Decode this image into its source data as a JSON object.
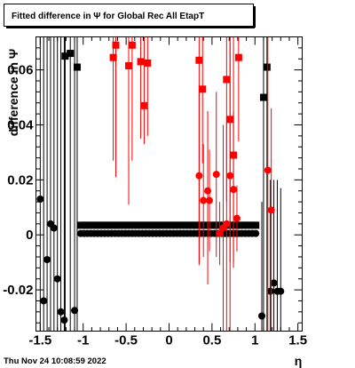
{
  "title": "Fitted difference in  Ψ  for Global Rec All EtapT",
  "timestamp": "Thu Nov 24 10:08:59 2022",
  "colors": {
    "black": "#000000",
    "red": "#ff0000",
    "frame": "#000000"
  },
  "chart_data": {
    "type": "scatter",
    "title": "Fitted difference in  Ψ  for Global Rec All EtapT",
    "xlabel": "η",
    "ylabel": "difference in  Ψ",
    "xlim": [
      -1.55,
      1.55
    ],
    "ylim": [
      -0.035,
      0.072
    ],
    "x_ticks": [
      -1.5,
      -1,
      -0.5,
      0,
      0.5,
      1,
      1.5
    ],
    "x_tick_labels": [
      "-1.5",
      "-1",
      "-0.5",
      "0",
      "0.5",
      "1",
      "1.5"
    ],
    "y_ticks": [
      -0.02,
      0,
      0.02,
      0.04,
      0.06
    ],
    "y_tick_labels": [
      "-0.02",
      "0",
      "0.02",
      "0.04",
      "0.06"
    ],
    "grid": false,
    "legend": "none",
    "series": [
      {
        "marker": "square",
        "color": "#000000",
        "points": [
          {
            "x": -1.21,
            "y": 0.065,
            "ylo": -0.035,
            "yhi": 0.072
          },
          {
            "x": -1.15,
            "y": 0.066,
            "ylo": -0.035,
            "yhi": 0.072
          },
          {
            "x": -1.07,
            "y": 0.061,
            "ylo": -0.035,
            "yhi": 0.072
          },
          {
            "x": -1.03,
            "y": 0.0035
          },
          {
            "x": -0.99,
            "y": 0.0035
          },
          {
            "x": -0.95,
            "y": 0.0035
          },
          {
            "x": -0.91,
            "y": 0.0035
          },
          {
            "x": -0.87,
            "y": 0.0035
          },
          {
            "x": -0.83,
            "y": 0.0035
          },
          {
            "x": -0.79,
            "y": 0.0035
          },
          {
            "x": -0.75,
            "y": 0.0035
          },
          {
            "x": -0.71,
            "y": 0.0035
          },
          {
            "x": -0.67,
            "y": 0.0035
          },
          {
            "x": -0.63,
            "y": 0.0035
          },
          {
            "x": -0.59,
            "y": 0.0035
          },
          {
            "x": -0.55,
            "y": 0.0035
          },
          {
            "x": -0.51,
            "y": 0.0035
          },
          {
            "x": -0.47,
            "y": 0.0035
          },
          {
            "x": -0.43,
            "y": 0.0035
          },
          {
            "x": -0.39,
            "y": 0.0035
          },
          {
            "x": -0.35,
            "y": 0.0035
          },
          {
            "x": -0.31,
            "y": 0.0035
          },
          {
            "x": -0.27,
            "y": 0.0035
          },
          {
            "x": -0.23,
            "y": 0.0035
          },
          {
            "x": -0.19,
            "y": 0.0035
          },
          {
            "x": -0.15,
            "y": 0.0035
          },
          {
            "x": -0.11,
            "y": 0.0035
          },
          {
            "x": -0.07,
            "y": 0.0035
          },
          {
            "x": -0.03,
            "y": 0.0035
          },
          {
            "x": 0.01,
            "y": 0.0035
          },
          {
            "x": 0.05,
            "y": 0.0035
          },
          {
            "x": 0.09,
            "y": 0.0035
          },
          {
            "x": 0.13,
            "y": 0.0035
          },
          {
            "x": 0.17,
            "y": 0.0035
          },
          {
            "x": 0.21,
            "y": 0.0035
          },
          {
            "x": 0.25,
            "y": 0.0035
          },
          {
            "x": 0.29,
            "y": 0.0035
          },
          {
            "x": 0.33,
            "y": 0.0035
          },
          {
            "x": 0.37,
            "y": 0.0035
          },
          {
            "x": 0.41,
            "y": 0.0035
          },
          {
            "x": 0.45,
            "y": 0.0035
          },
          {
            "x": 0.49,
            "y": 0.0035
          },
          {
            "x": 0.53,
            "y": 0.0035
          },
          {
            "x": 0.57,
            "y": 0.0035
          },
          {
            "x": 0.61,
            "y": 0.0035
          },
          {
            "x": 0.65,
            "y": 0.0035
          },
          {
            "x": 0.69,
            "y": 0.0035
          },
          {
            "x": 0.73,
            "y": 0.0035
          },
          {
            "x": 0.77,
            "y": 0.0035
          },
          {
            "x": 0.81,
            "y": 0.0035
          },
          {
            "x": 0.85,
            "y": 0.0035
          },
          {
            "x": 0.89,
            "y": 0.0035
          },
          {
            "x": 0.93,
            "y": 0.0035
          },
          {
            "x": 0.97,
            "y": 0.0035
          },
          {
            "x": 1.01,
            "y": 0.0035
          },
          {
            "x": 1.1,
            "y": 0.05,
            "ylo": -0.035,
            "yhi": 0.072
          },
          {
            "x": 1.14,
            "y": 0.061,
            "ylo": -0.035,
            "yhi": 0.072
          }
        ]
      },
      {
        "marker": "circle",
        "color": "#000000",
        "points": [
          {
            "x": -1.5,
            "y": 0.013,
            "ylo": -0.035,
            "yhi": 0.072
          },
          {
            "x": -1.46,
            "y": -0.024,
            "ylo": -0.035,
            "yhi": 0.072
          },
          {
            "x": -1.42,
            "y": -0.009,
            "ylo": -0.035,
            "yhi": 0.072
          },
          {
            "x": -1.38,
            "y": 0.004,
            "ylo": -0.035,
            "yhi": 0.072
          },
          {
            "x": -1.34,
            "y": 0.0025,
            "ylo": -0.035,
            "yhi": 0.072
          },
          {
            "x": -1.3,
            "y": -0.016,
            "ylo": -0.035,
            "yhi": 0.072
          },
          {
            "x": -1.26,
            "y": -0.028,
            "ylo": -0.035,
            "yhi": 0.072
          },
          {
            "x": -1.22,
            "y": -0.031,
            "ylo": -0.035,
            "yhi": 0.072
          },
          {
            "x": -1.1,
            "y": -0.0275,
            "ylo": -0.035,
            "yhi": 0.072
          },
          {
            "x": -1.03,
            "y": 0.0005
          },
          {
            "x": -0.99,
            "y": 0.0005
          },
          {
            "x": -0.95,
            "y": 0.0005
          },
          {
            "x": -0.91,
            "y": 0.0005
          },
          {
            "x": -0.87,
            "y": 0.0005
          },
          {
            "x": -0.83,
            "y": 0.0005
          },
          {
            "x": -0.79,
            "y": 0.0005
          },
          {
            "x": -0.75,
            "y": 0.0005
          },
          {
            "x": -0.71,
            "y": 0.0005
          },
          {
            "x": -0.67,
            "y": 0.0005
          },
          {
            "x": -0.63,
            "y": 0.0005
          },
          {
            "x": -0.59,
            "y": 0.0005
          },
          {
            "x": -0.55,
            "y": 0.0005
          },
          {
            "x": -0.51,
            "y": 0.0005
          },
          {
            "x": -0.47,
            "y": 0.0005
          },
          {
            "x": -0.43,
            "y": 0.0005
          },
          {
            "x": -0.39,
            "y": 0.0005
          },
          {
            "x": -0.35,
            "y": 0.0005
          },
          {
            "x": -0.31,
            "y": 0.0005
          },
          {
            "x": -0.27,
            "y": 0.0005
          },
          {
            "x": -0.23,
            "y": 0.0005
          },
          {
            "x": -0.19,
            "y": 0.0005
          },
          {
            "x": -0.15,
            "y": 0.0005
          },
          {
            "x": -0.11,
            "y": 0.0005
          },
          {
            "x": -0.07,
            "y": 0.0005
          },
          {
            "x": -0.03,
            "y": 0.0005
          },
          {
            "x": 0.01,
            "y": 0.0005
          },
          {
            "x": 0.05,
            "y": 0.0005
          },
          {
            "x": 0.09,
            "y": 0.0005
          },
          {
            "x": 0.13,
            "y": 0.0005
          },
          {
            "x": 0.17,
            "y": 0.0005
          },
          {
            "x": 0.21,
            "y": 0.0005
          },
          {
            "x": 0.25,
            "y": 0.0005
          },
          {
            "x": 0.29,
            "y": 0.0005
          },
          {
            "x": 0.33,
            "y": 0.0005
          },
          {
            "x": 0.37,
            "y": 0.0005
          },
          {
            "x": 0.41,
            "y": 0.0005
          },
          {
            "x": 0.45,
            "y": 0.0005
          },
          {
            "x": 0.49,
            "y": 0.0005
          },
          {
            "x": 0.53,
            "y": 0.0005
          },
          {
            "x": 0.57,
            "y": 0.0005
          },
          {
            "x": 0.61,
            "y": 0.0005
          },
          {
            "x": 0.65,
            "y": 0.0005
          },
          {
            "x": 0.69,
            "y": 0.0005
          },
          {
            "x": 0.73,
            "y": 0.0005
          },
          {
            "x": 0.77,
            "y": 0.0005
          },
          {
            "x": 0.81,
            "y": 0.0005
          },
          {
            "x": 0.85,
            "y": 0.0005
          },
          {
            "x": 0.89,
            "y": 0.0005
          },
          {
            "x": 0.93,
            "y": 0.0005
          },
          {
            "x": 0.97,
            "y": 0.0005
          },
          {
            "x": 1.01,
            "y": 0.0005
          },
          {
            "x": 1.08,
            "y": -0.0295,
            "ylo": -0.035,
            "yhi": 0.012
          },
          {
            "x": 1.18,
            "y": -0.0205,
            "ylo": -0.035,
            "yhi": 0.02
          },
          {
            "x": 1.22,
            "y": -0.0175,
            "ylo": -0.035,
            "yhi": 0.02
          },
          {
            "x": 1.26,
            "y": -0.0205,
            "ylo": -0.035,
            "yhi": 0.02
          },
          {
            "x": 1.3,
            "y": -0.0205,
            "ylo": -0.035,
            "yhi": 0.017
          }
        ]
      },
      {
        "marker": "square",
        "color": "#ff0000",
        "points": [
          {
            "x": -0.65,
            "y": 0.0645,
            "ylo": 0.027,
            "yhi": 0.072
          },
          {
            "x": -0.62,
            "y": 0.069,
            "ylo": 0.021,
            "yhi": 0.072
          },
          {
            "x": -0.47,
            "y": 0.0615,
            "ylo": 0.011,
            "yhi": 0.072
          },
          {
            "x": -0.43,
            "y": 0.069,
            "ylo": 0.027,
            "yhi": 0.072
          },
          {
            "x": -0.33,
            "y": 0.063,
            "ylo": 0.035,
            "yhi": 0.072
          },
          {
            "x": -0.29,
            "y": 0.047,
            "ylo": 0.033,
            "yhi": 0.072
          },
          {
            "x": -0.25,
            "y": 0.0625,
            "ylo": 0.036,
            "yhi": 0.072
          },
          {
            "x": 0.35,
            "y": 0.0635,
            "ylo": -0.01,
            "yhi": 0.072
          },
          {
            "x": 0.39,
            "y": 0.053,
            "ylo": 0.026,
            "yhi": 0.072
          },
          {
            "x": 0.67,
            "y": 0.0565,
            "ylo": 0.012,
            "yhi": 0.072
          },
          {
            "x": 0.71,
            "y": 0.042,
            "ylo": -0.01,
            "yhi": 0.072
          },
          {
            "x": 0.75,
            "y": 0.029,
            "ylo": -0.01,
            "yhi": 0.072
          },
          {
            "x": 0.81,
            "y": 0.0645,
            "ylo": 0.034,
            "yhi": 0.072
          }
        ]
      },
      {
        "marker": "circle",
        "color": "#ff0000",
        "points": [
          {
            "x": 0.35,
            "y": 0.0215,
            "ylo": -0.011,
            "yhi": 0.054
          },
          {
            "x": 0.4,
            "y": 0.0125,
            "ylo": -0.008,
            "yhi": 0.033
          },
          {
            "x": 0.45,
            "y": 0.016,
            "ylo": -0.018,
            "yhi": 0.045
          },
          {
            "x": 0.47,
            "y": 0.0125,
            "ylo": -0.006,
            "yhi": 0.031
          },
          {
            "x": 0.55,
            "y": 0.022,
            "ylo": -0.008,
            "yhi": 0.052
          },
          {
            "x": 0.59,
            "y": 0.0005,
            "ylo": -0.011,
            "yhi": 0.012
          },
          {
            "x": 0.63,
            "y": 0.0025,
            "ylo": -0.035,
            "yhi": 0.04
          },
          {
            "x": 0.67,
            "y": 0.004,
            "ylo": -0.035,
            "yhi": 0.043
          },
          {
            "x": 0.71,
            "y": 0.0215,
            "ylo": -0.035,
            "yhi": 0.072
          },
          {
            "x": 0.75,
            "y": 0.0165,
            "ylo": -0.012,
            "yhi": 0.045
          },
          {
            "x": 0.79,
            "y": 0.006,
            "ylo": -0.006,
            "yhi": 0.018
          },
          {
            "x": 1.15,
            "y": 0.0235,
            "ylo": -0.035,
            "yhi": 0.072
          },
          {
            "x": 1.19,
            "y": 0.009,
            "ylo": -0.035,
            "yhi": 0.046
          }
        ]
      }
    ]
  }
}
